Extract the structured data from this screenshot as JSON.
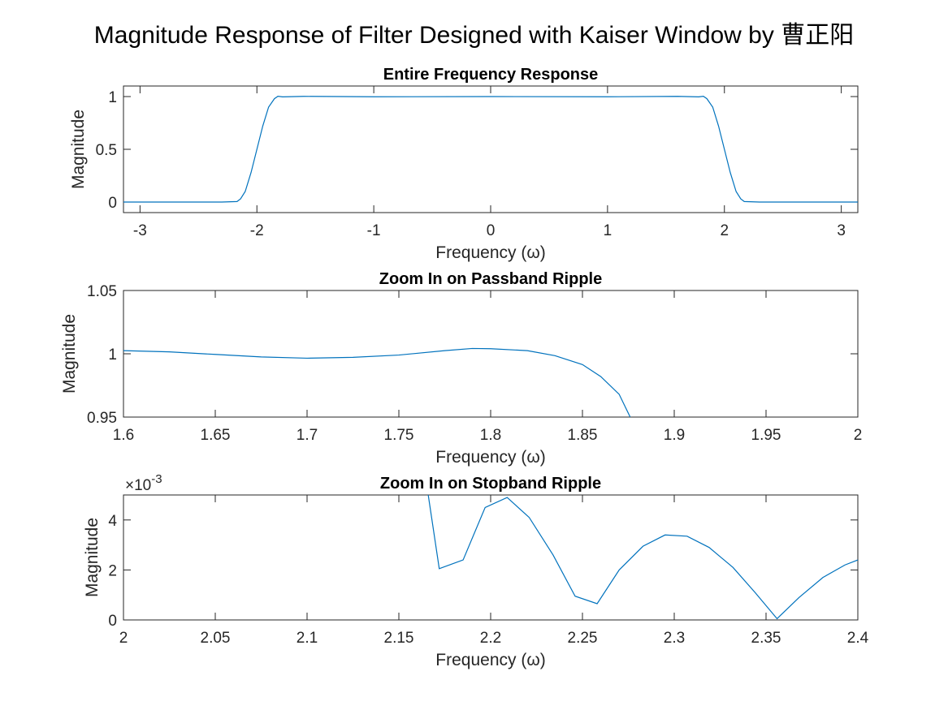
{
  "figure_title": "Magnitude Response of Filter Designed with Kaiser Window by 曹正阳",
  "colors": {
    "line": "#0072BD",
    "axes": "#262626",
    "background": "#ffffff"
  },
  "chart_data": [
    {
      "type": "line",
      "title": "Entire Frequency Response",
      "xlabel": "Frequency (ω)",
      "ylabel": "Magnitude",
      "xlim": [
        -3.1416,
        3.1416
      ],
      "ylim": [
        -0.1,
        1.1
      ],
      "xticks": [
        -3,
        -2,
        -1,
        0,
        1,
        2,
        3
      ],
      "xticklabels": [
        "-3",
        "-2",
        "-1",
        "0",
        "1",
        "2",
        "3"
      ],
      "yticks": [
        0,
        0.5,
        1
      ],
      "yticklabels": [
        "0",
        "0.5",
        "1"
      ],
      "grid": false,
      "series": [
        {
          "x": [
            -3.1416,
            -2.6,
            -2.3,
            -2.17,
            -2.14,
            -2.1,
            -2.05,
            -2.0,
            -1.95,
            -1.9,
            -1.85,
            -1.82,
            -1.78,
            -1.6,
            -1.0,
            0,
            1.0,
            1.6,
            1.78,
            1.82,
            1.85,
            1.9,
            1.95,
            2.0,
            2.05,
            2.1,
            2.14,
            2.17,
            2.3,
            2.6,
            3.1416
          ],
          "y": [
            0.0,
            0.0,
            0.0,
            0.005,
            0.03,
            0.1,
            0.28,
            0.5,
            0.72,
            0.9,
            0.98,
            1.003,
            0.997,
            1.002,
            0.998,
            1.0,
            0.998,
            1.002,
            0.997,
            1.003,
            0.98,
            0.9,
            0.72,
            0.5,
            0.28,
            0.1,
            0.03,
            0.005,
            0.0,
            0.0,
            0.0
          ]
        }
      ]
    },
    {
      "type": "line",
      "title": "Zoom In on Passband Ripple",
      "xlabel": "Frequency (ω)",
      "ylabel": "Magnitude",
      "xlim": [
        1.6,
        2.0
      ],
      "ylim": [
        0.95,
        1.05
      ],
      "xticks": [
        1.6,
        1.65,
        1.7,
        1.75,
        1.8,
        1.85,
        1.9,
        1.95,
        2.0
      ],
      "xticklabels": [
        "1.6",
        "1.65",
        "1.7",
        "1.75",
        "1.8",
        "1.85",
        "1.9",
        "1.95",
        "2"
      ],
      "yticks": [
        0.95,
        1.0,
        1.05
      ],
      "yticklabels": [
        "0.95",
        "1",
        "1.05"
      ],
      "grid": false,
      "series": [
        {
          "x": [
            1.6,
            1.625,
            1.65,
            1.675,
            1.7,
            1.725,
            1.75,
            1.775,
            1.79,
            1.8,
            1.82,
            1.835,
            1.85,
            1.86,
            1.87,
            1.876
          ],
          "y": [
            1.0025,
            1.0015,
            0.9995,
            0.9975,
            0.9965,
            0.9972,
            0.999,
            1.0025,
            1.0042,
            1.004,
            1.0025,
            0.9985,
            0.9915,
            0.982,
            0.968,
            0.95
          ]
        }
      ]
    },
    {
      "type": "line",
      "title": "Zoom In on Stopband Ripple",
      "xlabel": "Frequency (ω)",
      "ylabel": "Magnitude",
      "exponent_label": "×10",
      "exponent_power": "-3",
      "xlim": [
        2.0,
        2.4
      ],
      "ylim": [
        0,
        0.005
      ],
      "xticks": [
        2.0,
        2.05,
        2.1,
        2.15,
        2.2,
        2.25,
        2.3,
        2.35,
        2.4
      ],
      "xticklabels": [
        "2",
        "2.05",
        "2.1",
        "2.15",
        "2.2",
        "2.25",
        "2.3",
        "2.35",
        "2.4"
      ],
      "yticks": [
        0,
        0.002,
        0.004
      ],
      "yticklabels": [
        "0",
        "2",
        "4"
      ],
      "grid": false,
      "series": [
        {
          "x": [
            2.166,
            2.172,
            2.185,
            2.197,
            2.209,
            2.221,
            2.234,
            2.246,
            2.258,
            2.27,
            2.283,
            2.295,
            2.307,
            2.319,
            2.332,
            2.344,
            2.356,
            2.368,
            2.381,
            2.393,
            2.4
          ],
          "y": [
            0.005,
            0.00205,
            0.0024,
            0.0045,
            0.0049,
            0.0041,
            0.0026,
            0.00095,
            0.00065,
            0.002,
            0.00295,
            0.0034,
            0.00335,
            0.0029,
            0.0021,
            0.0011,
            5e-05,
            0.0009,
            0.0017,
            0.0022,
            0.0024
          ]
        }
      ]
    }
  ]
}
